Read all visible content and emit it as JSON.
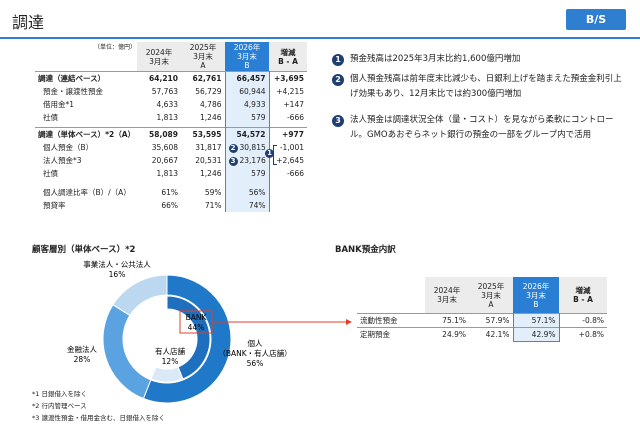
{
  "header": {
    "title": "調達",
    "badge": "B/S"
  },
  "table1": {
    "unit": "（単位：億円）",
    "columns": [
      "2024年\n3月末",
      "2025年\n3月末\nA",
      "2026年\n3月末\nB",
      "増減\nB - A"
    ],
    "groups": [
      {
        "total": {
          "label": "調達（連結ベース）",
          "values": [
            "64,210",
            "62,761",
            "66,457",
            "+3,695"
          ]
        },
        "items": [
          {
            "label": "預金・譲渡性預金",
            "values": [
              "57,763",
              "56,729",
              "60,944",
              "+4,215"
            ]
          },
          {
            "label": "借用金*1",
            "values": [
              "4,633",
              "4,786",
              "4,933",
              "+147"
            ]
          },
          {
            "label": "社債",
            "values": [
              "1,813",
              "1,246",
              "579",
              "-666"
            ]
          }
        ]
      },
      {
        "total": {
          "label": "調達（単体ベース）*2（A）",
          "values": [
            "58,089",
            "53,595",
            "54,572",
            "+977"
          ]
        },
        "items": [
          {
            "label": "個人預金（B）",
            "values": [
              "35,608",
              "31,817",
              "30,815",
              "-1,001"
            ],
            "marker": "2"
          },
          {
            "label": "法人預金*3",
            "values": [
              "20,667",
              "20,531",
              "23,176",
              "+2,645"
            ],
            "marker": "3"
          },
          {
            "label": "社債",
            "values": [
              "1,813",
              "1,246",
              "579",
              "-666"
            ]
          }
        ]
      }
    ],
    "bracket_marker": "1",
    "ratios": [
      {
        "label": "個人調達比率（B）/（A）",
        "values": [
          "61%",
          "59%",
          "56%"
        ]
      },
      {
        "label": "預貸率",
        "values": [
          "66%",
          "71%",
          "74%"
        ]
      }
    ]
  },
  "notes": [
    {
      "num": "1",
      "text": "預金残高は2025年3月末比約1,600億円増加"
    },
    {
      "num": "2",
      "text": "個人預金残高は前年度末比減少も、日銀利上げを踏まえた預金金利引上げ効果もあり、12月末比では約300億円増加"
    },
    {
      "num": "3",
      "text": "法人預金は調達状況全体（量・コスト）を見ながら柔軟にコントロール。GMOあおぞらネット銀行の預金の一部をグループ内で活用"
    }
  ],
  "donut": {
    "title": "顧客層別（単体ベース）*2",
    "outer": [
      {
        "name": "個人\n（BANK・有人店舗）",
        "value": 56,
        "label": "56%",
        "color": "#1f78c8"
      },
      {
        "name": "金融法人",
        "value": 28,
        "label": "28%",
        "color": "#5ba3e0"
      },
      {
        "name": "事業法人・公共法人",
        "value": 16,
        "label": "16%",
        "color": "#bcd8f0"
      }
    ],
    "inner": [
      {
        "name": "BANK",
        "value": 44,
        "label": "44%",
        "color": "#1f6fbf"
      },
      {
        "name": "有人店舗",
        "value": 12,
        "label": "12%",
        "color": "#dbe9f6"
      }
    ]
  },
  "footnotes": [
    "*1 日銀借入を除く",
    "*2 行内管理ベース",
    "*3 譲渡性預金・借用金含む、日銀借入を除く"
  ],
  "table2": {
    "title": "BANK預金内訳",
    "columns": [
      "2024年\n3月末",
      "2025年\n3月末\nA",
      "2026年\n3月末\nB",
      "増減\nB - A"
    ],
    "rows": [
      {
        "label": "流動性預金",
        "values": [
          "75.1%",
          "57.9%",
          "57.1%",
          "-0.8%"
        ]
      },
      {
        "label": "定期預金",
        "values": [
          "24.9%",
          "42.1%",
          "42.9%",
          "+0.8%"
        ]
      }
    ]
  }
}
